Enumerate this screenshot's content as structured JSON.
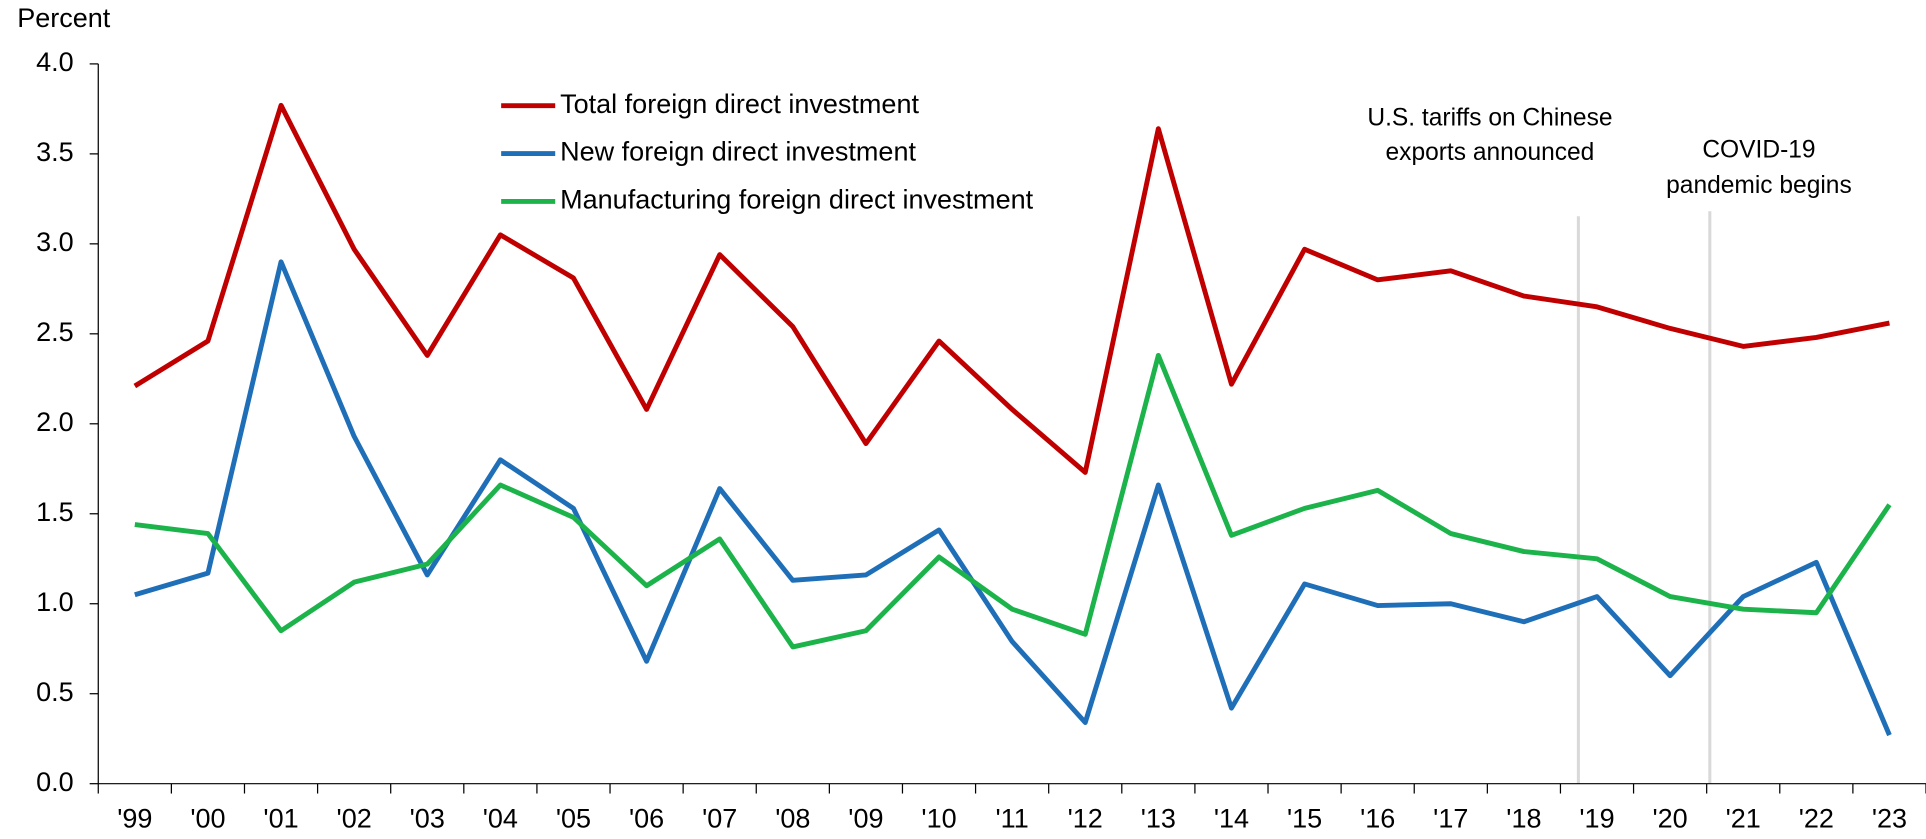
{
  "chart_data": {
    "type": "line",
    "y_label": "Percent",
    "categories": [
      "'99",
      "'00",
      "'01",
      "'02",
      "'03",
      "'04",
      "'05",
      "'06",
      "'07",
      "'08",
      "'09",
      "'10",
      "'11",
      "'12",
      "'13",
      "'14",
      "'15",
      "'16",
      "'17",
      "'18",
      "'19",
      "'20",
      "'21",
      "'22",
      "'23"
    ],
    "series": [
      {
        "name": "Total foreign direct investment",
        "color": "#c00000",
        "values": [
          2.21,
          2.46,
          3.77,
          2.97,
          2.38,
          3.05,
          2.81,
          2.08,
          2.94,
          2.54,
          1.89,
          2.46,
          2.08,
          1.73,
          3.64,
          2.22,
          2.97,
          2.8,
          2.85,
          2.71,
          2.65,
          2.53,
          2.43,
          2.48,
          2.56
        ]
      },
      {
        "name": "New foreign direct investment",
        "color": "#1f6fb8",
        "values": [
          1.05,
          1.17,
          2.9,
          1.93,
          1.16,
          1.8,
          1.53,
          0.68,
          1.64,
          1.13,
          1.16,
          1.41,
          0.79,
          0.34,
          1.66,
          0.42,
          1.11,
          0.99,
          1.0,
          0.9,
          1.04,
          0.6,
          1.04,
          1.23,
          0.27
        ]
      },
      {
        "name": "Manufacturing foreign direct investment",
        "color": "#1cb34b",
        "values": [
          1.44,
          1.39,
          0.85,
          1.12,
          1.22,
          1.66,
          1.48,
          1.1,
          1.36,
          0.76,
          0.85,
          1.26,
          0.97,
          0.83,
          2.38,
          1.38,
          1.53,
          1.63,
          1.39,
          1.29,
          1.25,
          1.04,
          0.97,
          0.95,
          1.55
        ]
      }
    ],
    "ylim": [
      0,
      4
    ],
    "yticks": [
      {
        "value": 0,
        "label": "0.0"
      },
      0.5,
      {
        "value": 1,
        "label": "1.0"
      },
      1.5,
      {
        "value": 2,
        "label": "2.0"
      },
      2.5,
      {
        "value": 3,
        "label": "3.0"
      },
      3.5,
      {
        "value": 4,
        "label": "4.0"
      }
    ],
    "annotations": [
      {
        "text": [
          "U.S. tariffs on Chinese",
          "exports announced"
        ]
      },
      {
        "text": [
          "COVID-19",
          "pandemic begins"
        ]
      }
    ]
  }
}
